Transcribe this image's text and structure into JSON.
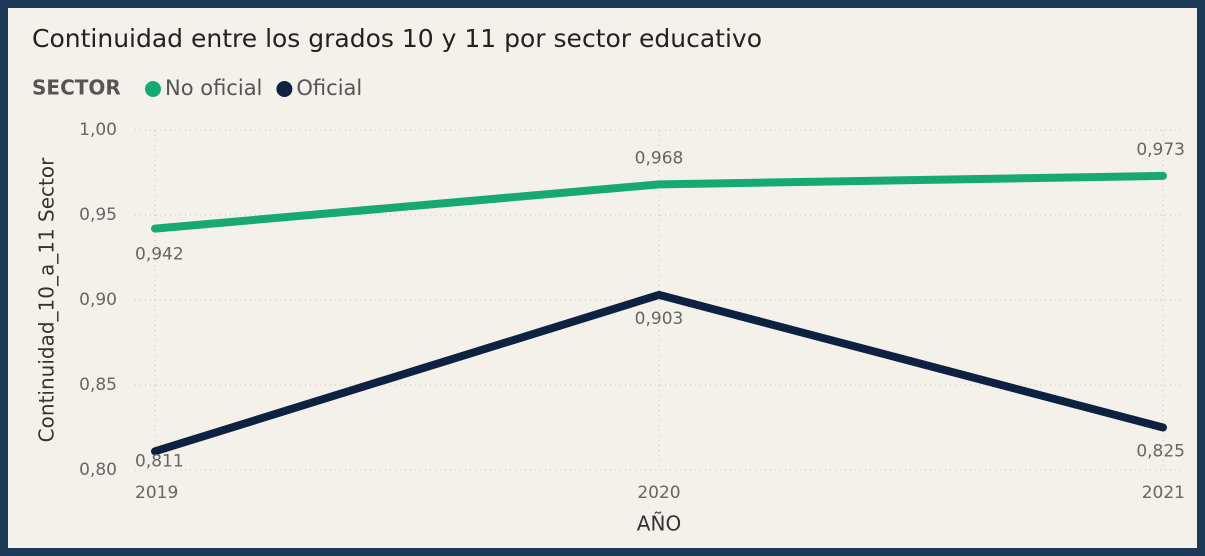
{
  "chart_data": {
    "type": "line",
    "title": "Continuidad entre los grados 10 y 11 por sector educativo",
    "legend_title": "SECTOR",
    "x": [
      2019,
      2020,
      2021
    ],
    "xlim": [
      2019,
      2021
    ],
    "xticks": [
      2019,
      2020,
      2021
    ],
    "xlabel": "AÑO",
    "ylabel": "Continuidad_10_a_11 Sector",
    "ylim": [
      0.8,
      1.0
    ],
    "yticks": [
      {
        "value": 0.8,
        "label": "0,80"
      },
      {
        "value": 0.85,
        "label": "0,85"
      },
      {
        "value": 0.9,
        "label": "0,90"
      },
      {
        "value": 0.95,
        "label": "0,95"
      },
      {
        "value": 1.0,
        "label": "1,00"
      }
    ],
    "grid": true,
    "series": [
      {
        "name": "No oficial",
        "color": "#17a874",
        "values": [
          0.942,
          0.968,
          0.973
        ],
        "value_labels": [
          "0,942",
          "0,968",
          "0,973"
        ]
      },
      {
        "name": "Oficial",
        "color": "#0e2140",
        "values": [
          0.811,
          0.903,
          0.825
        ],
        "value_labels": [
          "0,811",
          "0,903",
          "0,825"
        ]
      }
    ]
  }
}
